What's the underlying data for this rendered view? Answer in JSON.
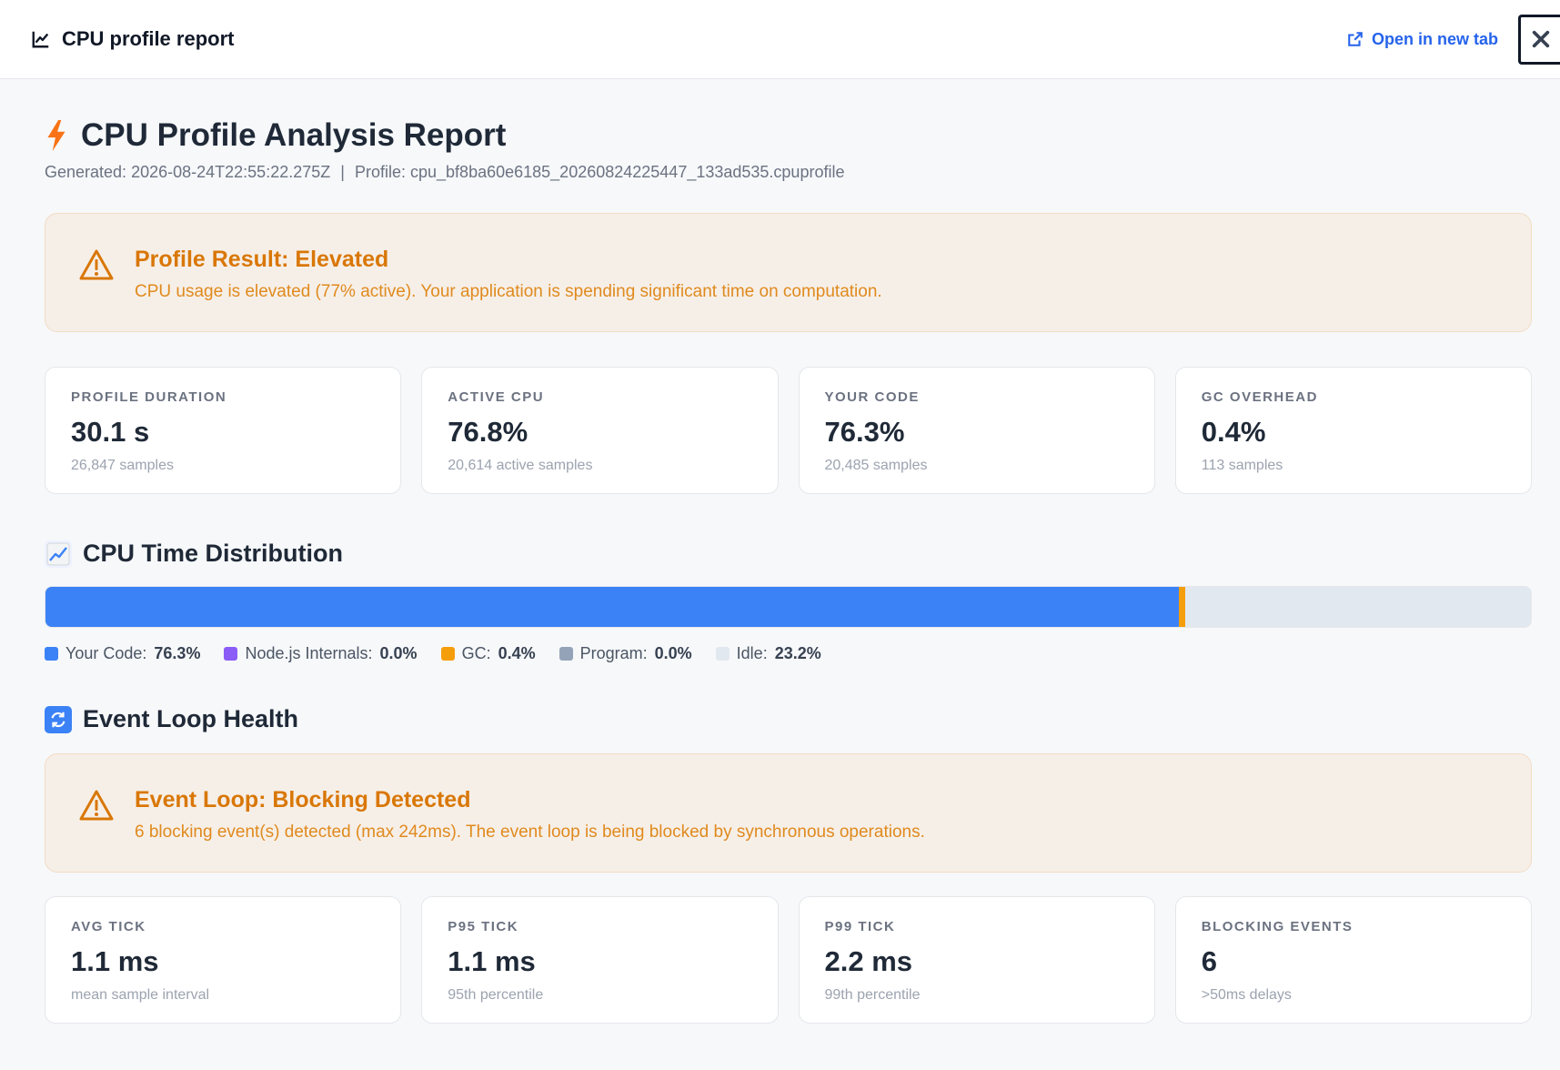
{
  "topbar": {
    "title": "CPU profile report",
    "open_new_tab": "Open in new tab",
    "close_icon": "close-icon"
  },
  "report": {
    "title": "CPU Profile Analysis Report",
    "generated_label": "Generated:",
    "generated_value": "2026-08-24T22:55:22.275Z",
    "separator": "|",
    "profile_label": "Profile:",
    "profile_value": "cpu_bf8ba60e6185_20260824225447_133ad535.cpuprofile"
  },
  "profile_alert": {
    "title": "Profile Result: Elevated",
    "text": "CPU usage is elevated (77% active). Your application is spending significant time on computation.",
    "icon": "warning-icon"
  },
  "profile_cards": [
    {
      "label": "PROFILE DURATION",
      "value": "30.1 s",
      "sub": "26,847 samples"
    },
    {
      "label": "ACTIVE CPU",
      "value": "76.8%",
      "sub": "20,614 active samples"
    },
    {
      "label": "YOUR CODE",
      "value": "76.3%",
      "sub": "20,485 samples"
    },
    {
      "label": "GC OVERHEAD",
      "value": "0.4%",
      "sub": "113 samples"
    }
  ],
  "distribution": {
    "title": "CPU Time Distribution",
    "segments": [
      {
        "label": "Your Code:",
        "value": "76.3%",
        "percent": 76.3,
        "color": "#3b82f6"
      },
      {
        "label": "Node.js Internals:",
        "value": "0.0%",
        "percent": 0.0,
        "color": "#8b5cf6"
      },
      {
        "label": "GC:",
        "value": "0.4%",
        "percent": 0.4,
        "color": "#f59e0b"
      },
      {
        "label": "Program:",
        "value": "0.0%",
        "percent": 0.0,
        "color": "#94a3b8"
      },
      {
        "label": "Idle:",
        "value": "23.2%",
        "percent": 23.2,
        "color": "#e2e8f0"
      }
    ]
  },
  "event_loop": {
    "title": "Event Loop Health",
    "alert_title": "Event Loop: Blocking Detected",
    "alert_text": "6 blocking event(s) detected (max 242ms). The event loop is being blocked by synchronous operations.",
    "cards": [
      {
        "label": "AVG TICK",
        "value": "1.1 ms",
        "sub": "mean sample interval"
      },
      {
        "label": "P95 TICK",
        "value": "1.1 ms",
        "sub": "95th percentile"
      },
      {
        "label": "P99 TICK",
        "value": "2.2 ms",
        "sub": "99th percentile"
      },
      {
        "label": "BLOCKING EVENTS",
        "value": "6",
        "sub": ">50ms delays"
      }
    ]
  }
}
